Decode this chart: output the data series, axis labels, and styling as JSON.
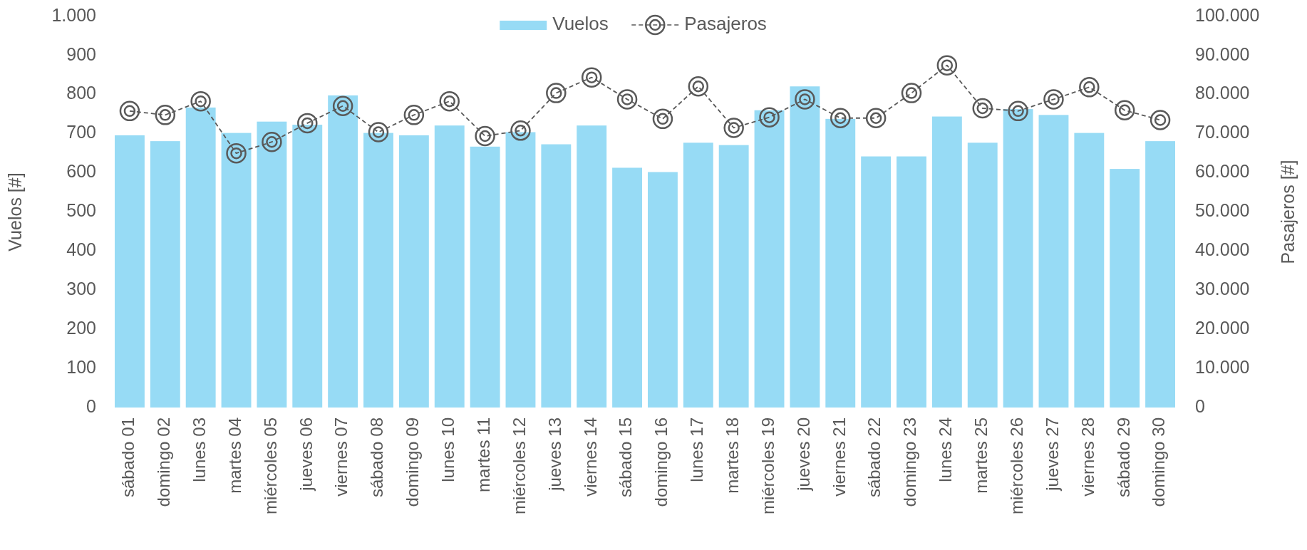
{
  "chart_data": {
    "type": "bar",
    "ylabel": "Vuelos [#]",
    "y2label": "Pasajeros [#]",
    "categories": [
      "sábado 01",
      "domingo 02",
      "lunes 03",
      "martes 04",
      "miércoles 05",
      "jueves 06",
      "viernes 07",
      "sábado 08",
      "domingo 09",
      "lunes 10",
      "martes 11",
      "miércoles 12",
      "jueves 13",
      "viernes 14",
      "sábado 15",
      "domingo 16",
      "lunes 17",
      "martes 18",
      "miércoles 19",
      "jueves 20",
      "viernes 21",
      "sábado 22",
      "domingo 23",
      "lunes 24",
      "martes 25",
      "miércoles 26",
      "jueves 27",
      "viernes 28",
      "sábado 29",
      "domingo 30"
    ],
    "series": [
      {
        "name": "Vuelos",
        "color": "#97dbf5",
        "values": [
          696,
          681,
          767,
          702,
          731,
          723,
          798,
          702,
          696,
          721,
          667,
          704,
          673,
          721,
          613,
          602,
          677,
          671,
          760,
          821,
          738,
          642,
          642,
          744,
          677,
          763,
          748,
          702,
          610,
          681
        ]
      },
      {
        "name": "Pasajeros",
        "type": "line",
        "axis": "y2",
        "color": "#595959",
        "marker": "circle",
        "line_style": "dashed",
        "values": [
          75800,
          74800,
          78300,
          65000,
          67900,
          72700,
          77100,
          70400,
          74800,
          78300,
          69400,
          70800,
          80400,
          84400,
          78800,
          73800,
          82100,
          71500,
          74200,
          78800,
          74000,
          74000,
          80400,
          87500,
          76500,
          75800,
          78800,
          81900,
          76000,
          73500
        ]
      }
    ],
    "ylim": [
      0,
      1000
    ],
    "yticks": [
      0,
      100,
      200,
      300,
      400,
      500,
      600,
      700,
      800,
      900,
      {
        "value": 1000,
        "label": "1.000"
      }
    ],
    "y2lim": [
      0,
      100000
    ],
    "y2ticks": [
      0,
      {
        "value": 10000,
        "label": "10.000"
      },
      {
        "value": 20000,
        "label": "20.000"
      },
      {
        "value": 30000,
        "label": "30.000"
      },
      {
        "value": 40000,
        "label": "40.000"
      },
      {
        "value": 50000,
        "label": "50.000"
      },
      {
        "value": 60000,
        "label": "60.000"
      },
      {
        "value": 70000,
        "label": "70.000"
      },
      {
        "value": 80000,
        "label": "80.000"
      },
      {
        "value": 90000,
        "label": "90.000"
      },
      {
        "value": 100000,
        "label": "100.000"
      }
    ],
    "grid": false,
    "legend": "top"
  }
}
